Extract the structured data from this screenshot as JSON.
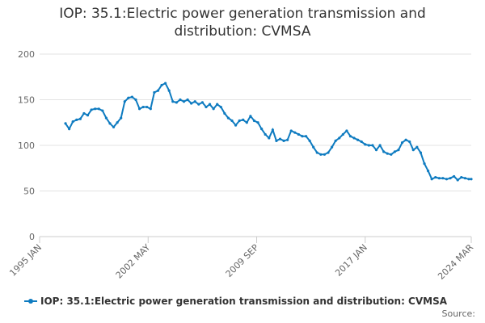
{
  "chart_data": {
    "type": "line",
    "title": "IOP: 35.1:Electric power generation transmission and distribution: CVMSA",
    "source_label": "Source:",
    "x": [
      "1996 OCT",
      "1997 JAN",
      "1997 APR",
      "1997 JUL",
      "1997 OCT",
      "1998 JAN",
      "1998 APR",
      "1998 JUL",
      "1998 OCT",
      "1999 JAN",
      "1999 APR",
      "1999 JUL",
      "1999 OCT",
      "2000 JAN",
      "2000 APR",
      "2000 JUL",
      "2000 OCT",
      "2001 JAN",
      "2001 APR",
      "2001 JUL",
      "2001 OCT",
      "2002 JAN",
      "2002 APR",
      "2002 JUL",
      "2002 OCT",
      "2003 JAN",
      "2003 APR",
      "2003 JUL",
      "2003 OCT",
      "2004 JAN",
      "2004 APR",
      "2004 JUL",
      "2004 OCT",
      "2005 JAN",
      "2005 APR",
      "2005 JUL",
      "2005 OCT",
      "2006 JAN",
      "2006 APR",
      "2006 JUL",
      "2006 OCT",
      "2007 JAN",
      "2007 APR",
      "2007 JUL",
      "2007 OCT",
      "2008 JAN",
      "2008 APR",
      "2008 JUL",
      "2008 OCT",
      "2009 JAN",
      "2009 APR",
      "2009 JUL",
      "2009 OCT",
      "2010 JAN",
      "2010 APR",
      "2010 JUL",
      "2010 OCT",
      "2011 JAN",
      "2011 APR",
      "2011 JUL",
      "2011 OCT",
      "2012 JAN",
      "2012 APR",
      "2012 JUL",
      "2012 OCT",
      "2013 JAN",
      "2013 APR",
      "2013 JUL",
      "2013 OCT",
      "2014 JAN",
      "2014 APR",
      "2014 JUL",
      "2014 OCT",
      "2015 JAN",
      "2015 APR",
      "2015 JUL",
      "2015 OCT",
      "2016 JAN",
      "2016 APR",
      "2016 JUL",
      "2016 OCT",
      "2017 JAN",
      "2017 APR",
      "2017 JUL",
      "2017 OCT",
      "2018 JAN",
      "2018 APR",
      "2018 JUL",
      "2018 OCT",
      "2019 JAN",
      "2019 APR",
      "2019 JUL",
      "2019 OCT",
      "2020 JAN",
      "2020 APR",
      "2020 JUL",
      "2020 OCT",
      "2021 JAN",
      "2021 APR",
      "2021 JUL",
      "2021 OCT",
      "2022 JAN",
      "2022 APR",
      "2022 JUL",
      "2022 OCT",
      "2023 JAN",
      "2023 APR",
      "2023 JUL",
      "2023 OCT",
      "2024 JAN",
      "2024 MAR"
    ],
    "series": [
      {
        "name": "IOP: 35.1:Electric power generation transmission and distribution: CVMSA",
        "color": "#0e7bc0",
        "values": [
          124,
          118,
          126,
          128,
          129,
          135,
          133,
          139,
          140,
          140,
          138,
          130,
          124,
          120,
          125,
          130,
          148,
          152,
          153,
          150,
          140,
          142,
          142,
          140,
          158,
          160,
          166,
          168,
          160,
          148,
          147,
          150,
          148,
          150,
          146,
          148,
          145,
          147,
          142,
          145,
          140,
          145,
          142,
          135,
          130,
          127,
          122,
          127,
          128,
          125,
          132,
          127,
          125,
          118,
          112,
          108,
          117,
          105,
          107,
          105,
          106,
          116,
          114,
          112,
          110,
          110,
          105,
          98,
          92,
          90,
          90,
          92,
          98,
          105,
          108,
          112,
          116,
          110,
          108,
          106,
          104,
          101,
          100,
          100,
          95,
          100,
          93,
          91,
          90,
          93,
          95,
          103,
          106,
          104,
          95,
          98,
          92,
          80,
          72,
          63,
          65,
          64,
          64,
          63,
          64,
          66,
          62,
          65,
          64,
          63,
          63
        ]
      }
    ],
    "xlim": [
      "1995 JAN",
      "2024 MAR"
    ],
    "xticks": [
      "1995 JAN",
      "2002 MAY",
      "2009 SEP",
      "2017 JAN",
      "2024 MAR"
    ],
    "ylim": [
      0,
      200
    ],
    "yticks": [
      0,
      50,
      100,
      150,
      200
    ],
    "grid": true,
    "legend": "bottom"
  }
}
